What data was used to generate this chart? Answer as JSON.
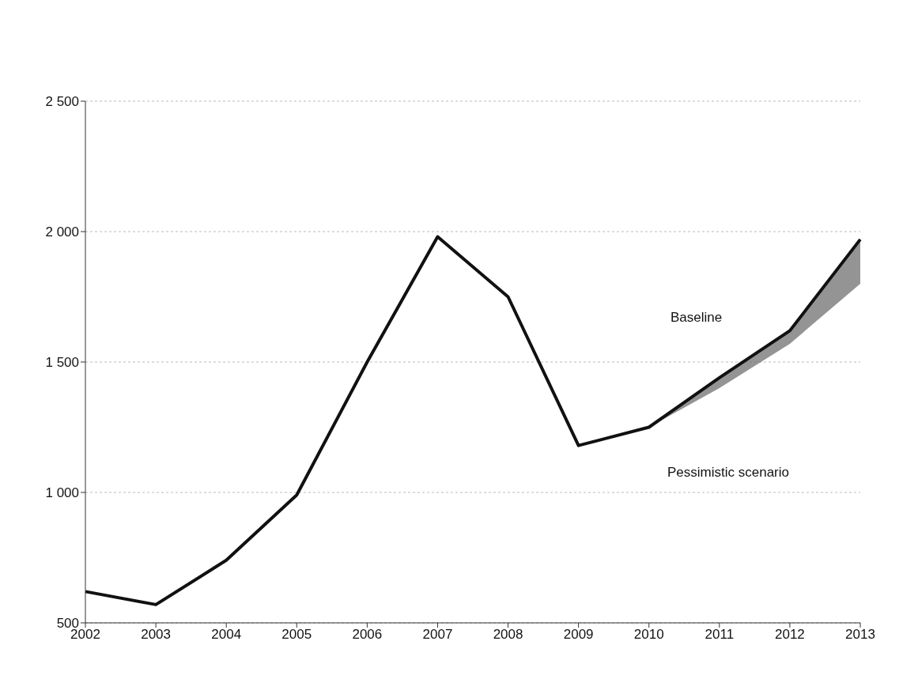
{
  "chart_data": {
    "type": "line",
    "categories": [
      "2002",
      "2003",
      "2004",
      "2005",
      "2006",
      "2007",
      "2008",
      "2009",
      "2010",
      "2011",
      "2012",
      "2013"
    ],
    "series": [
      {
        "color": "#111111",
        "values": [
          620,
          570,
          740,
          990,
          1500,
          1980,
          1750,
          1180,
          1250,
          1440,
          1620,
          1970
        ],
        "lower": [
          null,
          null,
          null,
          null,
          null,
          null,
          null,
          null,
          1250,
          1400,
          1570,
          1800
        ],
        "upper": [
          null,
          null,
          null,
          null,
          null,
          null,
          null,
          null,
          1250,
          1440,
          1620,
          1970
        ]
      }
    ],
    "ylim": [
      500,
      2500
    ],
    "yticks": [
      500,
      {
        "value": 1000,
        "label": "1 000"
      },
      {
        "value": 1500,
        "label": "1 500"
      },
      {
        "value": 2000,
        "label": "2 000"
      },
      {
        "value": 2500,
        "label": "2 500"
      }
    ],
    "grid": "y",
    "legend": false,
    "marker": "none",
    "line_style": "solid",
    "annotations": [
      "Baseline",
      "Pessimistic scenario"
    ]
  }
}
